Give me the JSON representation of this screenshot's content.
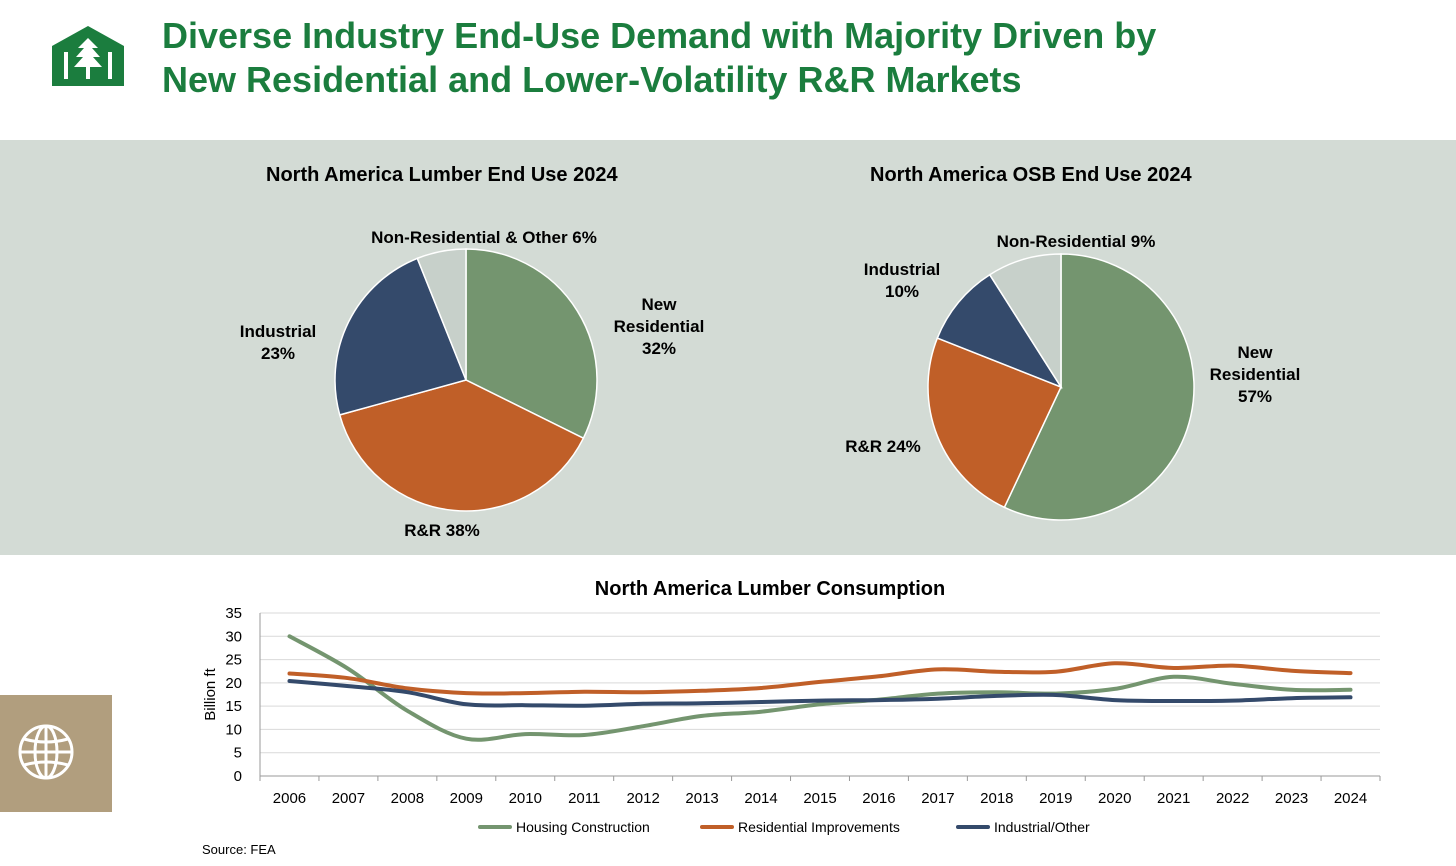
{
  "header": {
    "title_line1": "Diverse Industry End-Use Demand with Majority Driven by",
    "title_line2": "New Residential and Lower-Volatility R&R Markets",
    "logo_icon": "trees-house-logo-icon"
  },
  "colors": {
    "title": "#1b7d3e",
    "new_residential": "#74956f",
    "rr": "#c05f28",
    "industrial": "#344a6b",
    "non_residential": "#c7d0ca",
    "panel_bg": "#d3dbd5",
    "globe_box": "#b19e7e"
  },
  "sidebar": {
    "icon": "globe-icon"
  },
  "chart_data": [
    {
      "type": "pie",
      "title": "North America Lumber End Use 2024",
      "slices": [
        {
          "label": "New Residential",
          "value": 32,
          "text": [
            "New",
            "Residential",
            "32%"
          ]
        },
        {
          "label": "R&R",
          "value": 38,
          "text": [
            "R&R 38%"
          ]
        },
        {
          "label": "Industrial",
          "value": 23,
          "text": [
            "Industrial",
            "23%"
          ]
        },
        {
          "label": "Non-Residential & Other",
          "value": 6,
          "text": [
            "Non-Residential & Other 6%"
          ]
        }
      ],
      "start": "12 o'clock, clockwise"
    },
    {
      "type": "pie",
      "title": "North America OSB End Use 2024",
      "slices": [
        {
          "label": "New Residential",
          "value": 57,
          "text": [
            "New",
            "Residential",
            "57%"
          ]
        },
        {
          "label": "R&R",
          "value": 24,
          "text": [
            "R&R 24%"
          ]
        },
        {
          "label": "Industrial",
          "value": 10,
          "text": [
            "Industrial",
            "10%"
          ]
        },
        {
          "label": "Non-Residential",
          "value": 9,
          "text": [
            "Non-Residential 9%"
          ]
        }
      ],
      "start": "12 o'clock, clockwise"
    },
    {
      "type": "line",
      "title": "North America Lumber Consumption",
      "ylabel": "Billion ft",
      "xlabel": "",
      "ylim": [
        0,
        35
      ],
      "yticks": [
        0,
        5,
        10,
        15,
        20,
        25,
        30,
        35
      ],
      "grid": true,
      "legend": "bottom",
      "x": [
        "2006",
        "2007",
        "2008",
        "2009",
        "2010",
        "2011",
        "2012",
        "2013",
        "2014",
        "2015",
        "2016",
        "2017",
        "2018",
        "2019",
        "2020",
        "2021",
        "2022",
        "2023",
        "2024"
      ],
      "series": [
        {
          "name": "Housing Construction",
          "values": [
            30,
            23,
            14,
            8,
            9,
            8.8,
            10.7,
            12.9,
            13.8,
            15.4,
            16.4,
            17.7,
            18.0,
            17.7,
            18.7,
            21.3,
            19.8,
            18.5,
            18.5
          ]
        },
        {
          "name": "Residential Improvements",
          "values": [
            22,
            21,
            18.8,
            17.8,
            17.8,
            18.1,
            18.0,
            18.3,
            18.9,
            20.2,
            21.4,
            22.9,
            22.4,
            22.4,
            24.2,
            23.2,
            23.7,
            22.6,
            22.1
          ]
        },
        {
          "name": "Industrial/Other",
          "values": [
            20.4,
            19.3,
            18.0,
            15.4,
            15.2,
            15.1,
            15.5,
            15.6,
            15.9,
            16.2,
            16.3,
            16.6,
            17.2,
            17.4,
            16.3,
            16.1,
            16.2,
            16.7,
            16.9
          ]
        }
      ]
    }
  ],
  "source": "Source: FEA"
}
